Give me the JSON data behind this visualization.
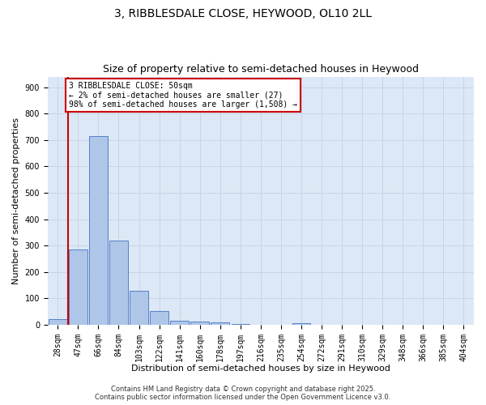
{
  "title1": "3, RIBBLESDALE CLOSE, HEYWOOD, OL10 2LL",
  "title2": "Size of property relative to semi-detached houses in Heywood",
  "xlabel": "Distribution of semi-detached houses by size in Heywood",
  "ylabel": "Number of semi-detached properties",
  "bar_labels": [
    "28sqm",
    "47sqm",
    "66sqm",
    "84sqm",
    "103sqm",
    "122sqm",
    "141sqm",
    "160sqm",
    "178sqm",
    "197sqm",
    "216sqm",
    "235sqm",
    "254sqm",
    "272sqm",
    "291sqm",
    "310sqm",
    "329sqm",
    "348sqm",
    "366sqm",
    "385sqm",
    "404sqm"
  ],
  "bar_values": [
    20,
    285,
    715,
    320,
    128,
    52,
    15,
    12,
    8,
    3,
    0,
    0,
    7,
    0,
    0,
    0,
    0,
    0,
    0,
    0,
    0
  ],
  "bar_color": "#aec6e8",
  "bar_edge_color": "#4472c4",
  "grid_color": "#c8d4e8",
  "background_color": "#dce8f5",
  "vline_x": 0.5,
  "vline_color": "#cc0000",
  "annotation_text": "3 RIBBLESDALE CLOSE: 50sqm\n← 2% of semi-detached houses are smaller (27)\n98% of semi-detached houses are larger (1,508) →",
  "annotation_box_color": "#cc0000",
  "ylim": [
    0,
    940
  ],
  "yticks": [
    0,
    100,
    200,
    300,
    400,
    500,
    600,
    700,
    800,
    900
  ],
  "footer_line1": "Contains HM Land Registry data © Crown copyright and database right 2025.",
  "footer_line2": "Contains public sector information licensed under the Open Government Licence v3.0.",
  "title_fontsize": 10,
  "subtitle_fontsize": 9,
  "label_fontsize": 8,
  "tick_fontsize": 7,
  "ann_fontsize": 7,
  "footer_fontsize": 6
}
